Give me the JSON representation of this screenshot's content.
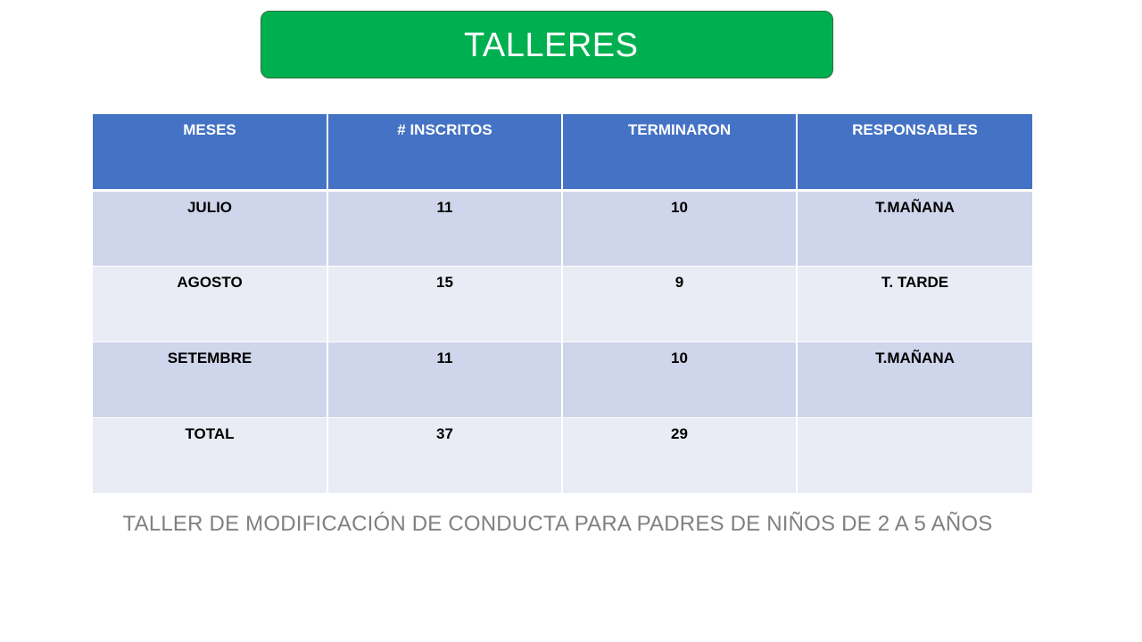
{
  "title": "TALLERES",
  "table": {
    "headers": [
      "MESES",
      "# INSCRITOS",
      "TERMINARON",
      "RESPONSABLES"
    ],
    "rows": [
      [
        "JULIO",
        "11",
        "10",
        "T.MAÑANA"
      ],
      [
        "AGOSTO",
        "15",
        "9",
        "T. TARDE"
      ],
      [
        "SETEMBRE",
        "11",
        "10",
        "T.MAÑANA"
      ],
      [
        "TOTAL",
        "37",
        "29",
        ""
      ]
    ]
  },
  "caption": "TALLER DE MODIFICACIÓN DE CONDUCTA PARA PADRES DE NIÑOS DE 2 A 5 AÑOS",
  "colors": {
    "banner": "#00b050",
    "header_bg": "#4472c4",
    "row_dark": "#cfd5ea",
    "row_light": "#e9ebf5",
    "caption": "#808080"
  }
}
